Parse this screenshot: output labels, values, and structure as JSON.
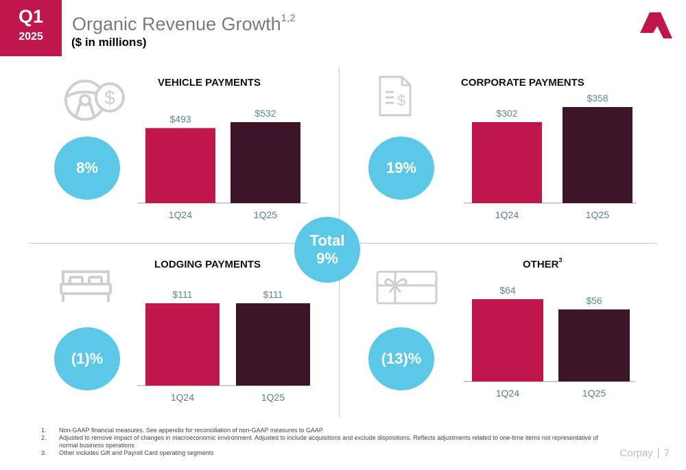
{
  "header": {
    "quarter": "Q1",
    "year": "2025",
    "title": "Organic Revenue Growth",
    "title_sup": "1,2",
    "subtitle": "($ in millions)"
  },
  "total": {
    "label": "Total",
    "value": "9%"
  },
  "colors": {
    "prior": "#c0174a",
    "current": "#3c1627",
    "bubble": "#5bc8e8",
    "value_label": "#5b8a8f",
    "tick_label": "#5b7f88"
  },
  "chart_data": [
    {
      "type": "bar",
      "title": "VEHICLE PAYMENTS",
      "title_sup": "",
      "categories": [
        "1Q24",
        "1Q25"
      ],
      "values": [
        493,
        532
      ],
      "value_labels": [
        "$493",
        "$532"
      ],
      "growth": "8%"
    },
    {
      "type": "bar",
      "title": "CORPORATE PAYMENTS",
      "title_sup": "",
      "categories": [
        "1Q24",
        "1Q25"
      ],
      "values": [
        302,
        358
      ],
      "value_labels": [
        "$302",
        "$358"
      ],
      "growth": "19%"
    },
    {
      "type": "bar",
      "title": "LODGING PAYMENTS",
      "title_sup": "",
      "categories": [
        "1Q24",
        "1Q25"
      ],
      "values": [
        111,
        111
      ],
      "value_labels": [
        "$111",
        "$111"
      ],
      "growth": "(1)%"
    },
    {
      "type": "bar",
      "title": "OTHER",
      "title_sup": "3",
      "categories": [
        "1Q24",
        "1Q25"
      ],
      "values": [
        64,
        56
      ],
      "value_labels": [
        "$64",
        "$56"
      ],
      "growth": "(13)%"
    }
  ],
  "footnotes": [
    {
      "num": "1.",
      "text": "Non-GAAP financial measures. See appendix for reconciliation of non-GAAP measures to GAAP"
    },
    {
      "num": "2.",
      "text": "Adjusted to remove impact of changes in macroeconomic environment. Adjusted to include acquisitions and exclude dispositions. Reflects adjustments related to one-time items not representative of normal business operations"
    },
    {
      "num": "3.",
      "text": "Other includes Gift and Payroll Card operating segments"
    }
  ],
  "footer": {
    "brand": "Corpay",
    "separator": "|",
    "page": "7"
  },
  "icons": {
    "vehicle": "steering-wheel-dollar-icon",
    "corporate": "invoice-dollar-icon",
    "lodging": "bed-icon",
    "other": "gift-card-icon",
    "logo": "corpay-logo-icon"
  }
}
